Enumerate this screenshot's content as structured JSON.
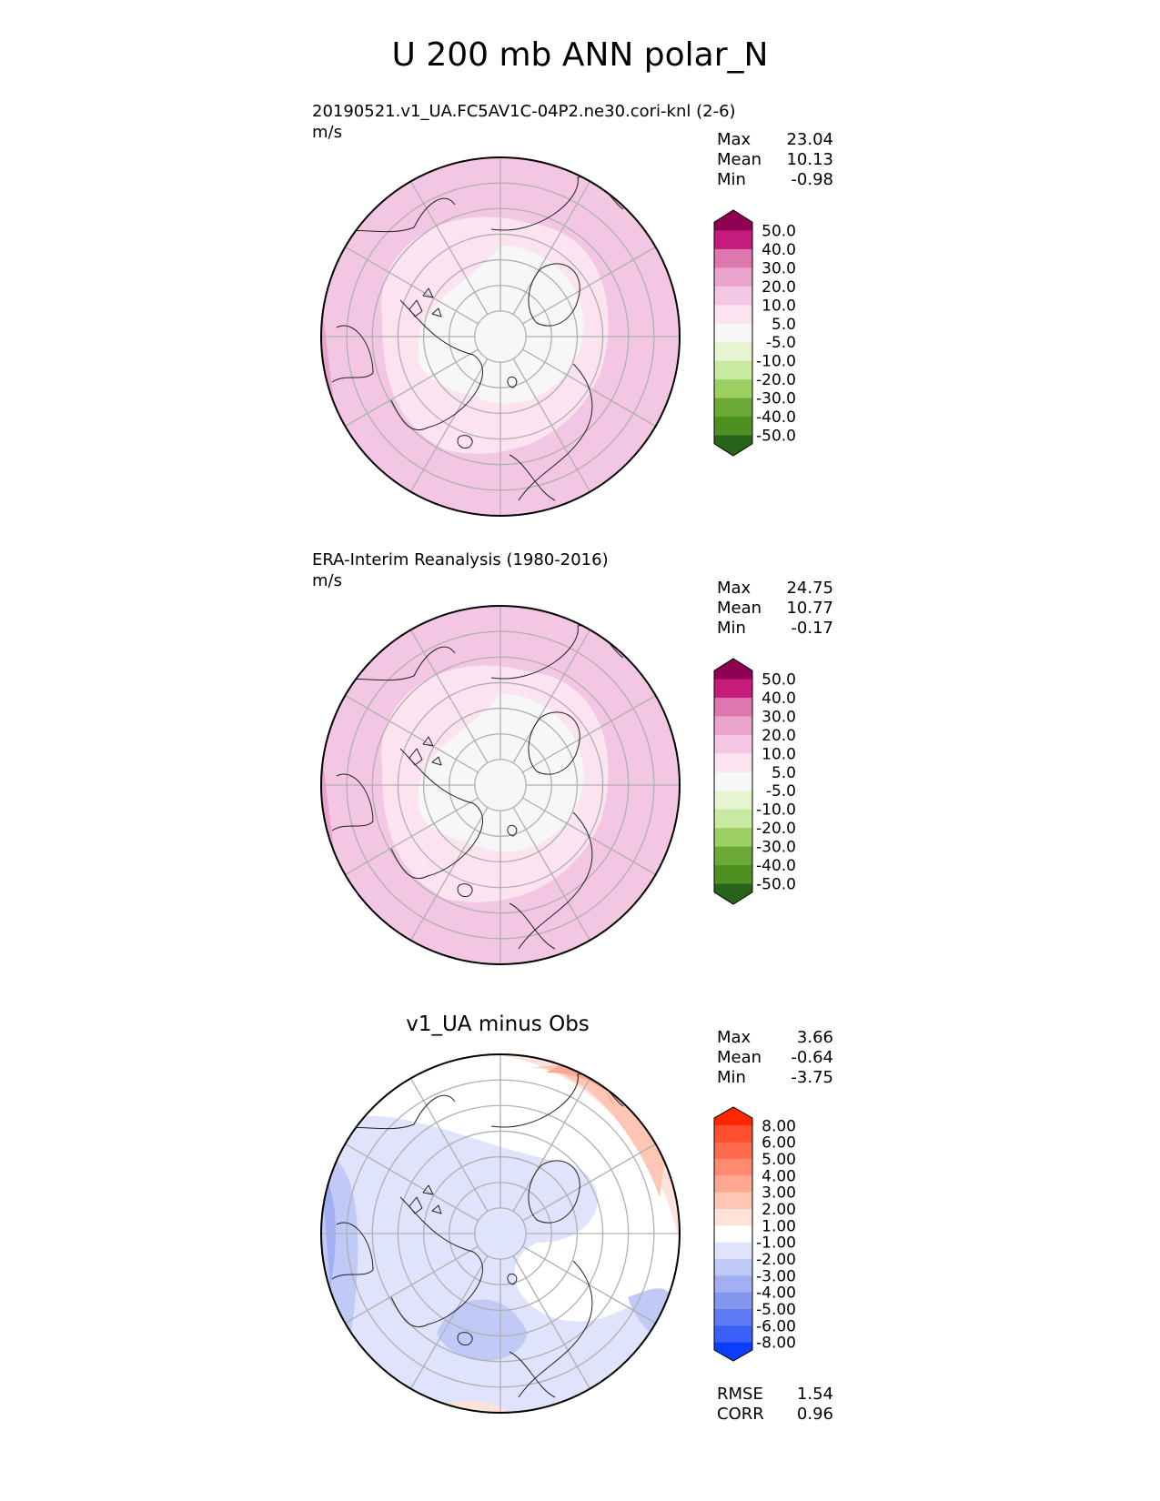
{
  "figure": {
    "title": "U 200 mb ANN polar_N"
  },
  "panels": [
    {
      "id": "test",
      "title": "20190521.v1_UA.FC5AV1C-04P2.ne30.cori-knl (2-6)",
      "units": "m/s",
      "stats": [
        {
          "label": "Max",
          "value": "23.04"
        },
        {
          "label": "Mean",
          "value": "10.13"
        },
        {
          "label": "Min",
          "value": "-0.98"
        }
      ],
      "colorbar": {
        "ticks": [
          "50.0",
          "40.0",
          "30.0",
          "20.0",
          "10.0",
          "5.0",
          "-5.0",
          "-10.0",
          "-20.0",
          "-30.0",
          "-40.0",
          "-50.0"
        ],
        "colors": [
          "#8e0152",
          "#c51b7d",
          "#de77ae",
          "#eaa3cd",
          "#f3c6e3",
          "#fbe3f0",
          "#f7f7f7",
          "#e6f5d0",
          "#c7e9a0",
          "#9dd064",
          "#6aa933",
          "#4d9221",
          "#276419"
        ]
      }
    },
    {
      "id": "reference",
      "title": "ERA-Interim Reanalysis (1980-2016)",
      "units": "m/s",
      "stats": [
        {
          "label": "Max",
          "value": "24.75"
        },
        {
          "label": "Mean",
          "value": "10.77"
        },
        {
          "label": "Min",
          "value": "-0.17"
        }
      ],
      "colorbar": {
        "ticks": [
          "50.0",
          "40.0",
          "30.0",
          "20.0",
          "10.0",
          "5.0",
          "-5.0",
          "-10.0",
          "-20.0",
          "-30.0",
          "-40.0",
          "-50.0"
        ],
        "colors": [
          "#8e0152",
          "#c51b7d",
          "#de77ae",
          "#eaa3cd",
          "#f3c6e3",
          "#fbe3f0",
          "#f7f7f7",
          "#e6f5d0",
          "#c7e9a0",
          "#9dd064",
          "#6aa933",
          "#4d9221",
          "#276419"
        ]
      }
    },
    {
      "id": "diff",
      "title": "v1_UA minus Obs",
      "stats": [
        {
          "label": "Max",
          "value": "3.66"
        },
        {
          "label": "Mean",
          "value": "-0.64"
        },
        {
          "label": "Min",
          "value": "-3.75"
        }
      ],
      "metrics": [
        {
          "label": "RMSE",
          "value": "1.54"
        },
        {
          "label": "CORR",
          "value": "0.96"
        }
      ],
      "colorbar": {
        "ticks": [
          "8.00",
          "6.00",
          "5.00",
          "4.00",
          "3.00",
          "2.00",
          "1.00",
          "-1.00",
          "-2.00",
          "-3.00",
          "-4.00",
          "-5.00",
          "-6.00",
          "-8.00"
        ],
        "colors": [
          "#ff2600",
          "#ff4f2e",
          "#ff6b4f",
          "#ff8a70",
          "#ffa891",
          "#ffc6b5",
          "#ffe2d8",
          "#ffffff",
          "#dfe3fb",
          "#c1c9f7",
          "#a2b0f3",
          "#8397ef",
          "#5f7cf4",
          "#3a60f8",
          "#0b3cff"
        ]
      }
    }
  ],
  "chart_data": [
    {
      "type": "heatmap",
      "projection": "north polar stereographic",
      "title": "20190521.v1_UA.FC5AV1C-04P2.ne30.cori-knl (2-6)",
      "units": "m/s",
      "levels": [
        -50,
        -40,
        -30,
        -20,
        -10,
        -5,
        5,
        10,
        20,
        30,
        40,
        50
      ],
      "stats": {
        "max": 23.04,
        "mean": 10.13,
        "min": -0.98
      }
    },
    {
      "type": "heatmap",
      "projection": "north polar stereographic",
      "title": "ERA-Interim Reanalysis (1980-2016)",
      "units": "m/s",
      "levels": [
        -50,
        -40,
        -30,
        -20,
        -10,
        -5,
        5,
        10,
        20,
        30,
        40,
        50
      ],
      "stats": {
        "max": 24.75,
        "mean": 10.77,
        "min": -0.17
      }
    },
    {
      "type": "heatmap",
      "projection": "north polar stereographic",
      "title": "v1_UA minus Obs",
      "levels": [
        -8,
        -6,
        -5,
        -4,
        -3,
        -2,
        -1,
        1,
        2,
        3,
        4,
        5,
        6,
        8
      ],
      "stats": {
        "max": 3.66,
        "mean": -0.64,
        "min": -3.75,
        "rmse": 1.54,
        "corr": 0.96
      }
    }
  ]
}
